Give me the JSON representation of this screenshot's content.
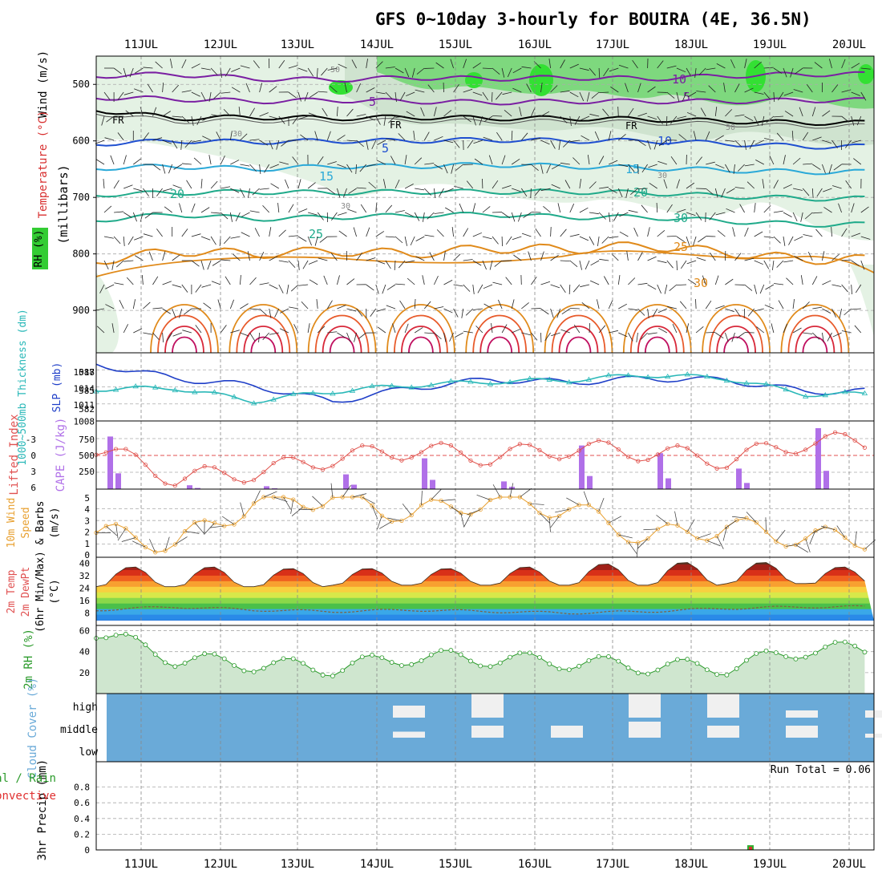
{
  "title": "GFS 0~10day 3-hourly for BOUIRA (4E, 36.5N)",
  "dates": [
    "11JUL",
    "12JUL",
    "13JUL",
    "14JUL",
    "15JUL",
    "16JUL",
    "17JUL",
    "18JUL",
    "19JUL",
    "20JUL"
  ],
  "colors": {
    "rh_green": "#4fd24f",
    "rh_light": "#e4f2e4",
    "temp_purple": "#7a1fa2",
    "temp_blue": "#1f4fd0",
    "temp_cyan": "#2aa9d8",
    "temp_teal": "#1faa8a",
    "temp_orange": "#e08a1a",
    "temp_red": "#d8283a",
    "slp": "#1f3fc8",
    "thickness": "#2ab8b8",
    "lifted": "#e0504a",
    "cape": "#b070e8",
    "wind10": "#e8a030",
    "rh2m": "#2a9a2a",
    "cloud_bg": "#6aaad8",
    "cloud_fill": "#f0f0f0"
  },
  "upper_panel": {
    "ylabel_wind": "Wind (m/s)",
    "ylabel_temp": "Temperature (°C)",
    "ylabel_rh": "RH (%)",
    "ylabel_mb": "(millibars)",
    "yticks": [
      "500",
      "600",
      "700",
      "800",
      "900"
    ],
    "freezing_label": "FR",
    "isotherm_labels": [
      "10",
      "5",
      "5",
      "5",
      "10",
      "15",
      "15",
      "20",
      "20",
      "25",
      "30"
    ],
    "rh_labels": [
      "50",
      "30",
      "50",
      "30",
      "30"
    ]
  },
  "chart_data": [
    {
      "type": "line",
      "panel": "pressure-level cross-section",
      "title": "GFS 0~10day 3-hourly for BOUIRA (4E, 36.5N)",
      "x": [
        "11JUL",
        "12JUL",
        "13JUL",
        "14JUL",
        "15JUL",
        "16JUL",
        "17JUL",
        "18JUL",
        "19JUL",
        "20JUL"
      ],
      "ylabel": "(millibars)",
      "ylim": [
        975,
        450
      ],
      "series": [
        {
          "name": "FR",
          "values": [
            545,
            560,
            558,
            560,
            558,
            560,
            560,
            562,
            565,
            568
          ]
        },
        {
          "name": "-5",
          "values": [
            523,
            526,
            530,
            528,
            530,
            532,
            530,
            530,
            530,
            528
          ]
        },
        {
          "name": "-10",
          "values": [
            485,
            482,
            490,
            492,
            488,
            490,
            488,
            490,
            485,
            482
          ]
        },
        {
          "name": "5",
          "values": [
            605,
            600,
            602,
            600,
            600,
            598,
            600,
            600,
            605,
            610
          ]
        },
        {
          "name": "10",
          "values": [
            648,
            645,
            650,
            645,
            645,
            642,
            645,
            648,
            652,
            655
          ]
        },
        {
          "name": "15",
          "values": [
            695,
            692,
            690,
            692,
            690,
            690,
            690,
            692,
            698,
            702
          ]
        },
        {
          "name": "20",
          "values": [
            740,
            730,
            738,
            735,
            732,
            730,
            735,
            735,
            742,
            748
          ]
        },
        {
          "name": "25",
          "values": [
            812,
            795,
            800,
            795,
            800,
            790,
            792,
            785,
            798,
            810
          ]
        }
      ]
    },
    {
      "type": "line",
      "panel": "SLP / thickness",
      "ylabel": "SLP (mb)",
      "ylabel2": "1000~500mb Thickness (dm)",
      "yticks_left": [
        "588",
        "585",
        "582"
      ],
      "yticks_right": [
        "1017",
        "1014",
        "1011",
        "1008"
      ],
      "ylim": [
        1008,
        1020
      ],
      "x": [
        "11JUL",
        "12JUL",
        "13JUL",
        "14JUL",
        "15JUL",
        "16JUL",
        "17JUL",
        "18JUL",
        "19JUL",
        "20JUL"
      ],
      "series": [
        {
          "name": "SLP",
          "values": [
            1018,
            1015.5,
            1014.2,
            1011.4,
            1013.8,
            1015.3,
            1014.8,
            1015.5,
            1015.2,
            1013.2
          ]
        },
        {
          "name": "Thickness",
          "values": [
            1013.6,
            1013.8,
            1011.5,
            1013.2,
            1014.3,
            1014.9,
            1015.2,
            1016.1,
            1015.5,
            1012.7
          ]
        }
      ]
    },
    {
      "type": "bar",
      "panel": "Lifted Index / CAPE",
      "ylabel": "Lifted Index",
      "ylabel2": "CAPE (J/kg)",
      "yticks_left": [
        "-3",
        "0",
        "3",
        "6"
      ],
      "yticks_right": [
        "750",
        "500",
        "250"
      ],
      "x": [
        "11JUL",
        "12JUL",
        "13JUL",
        "14JUL",
        "15JUL",
        "16JUL",
        "17JUL",
        "18JUL",
        "19JUL",
        "20JUL"
      ],
      "series": [
        {
          "name": "CAPE",
          "values": [
            820,
            60,
            45,
            230,
            480,
            120,
            680,
            560,
            320,
            950
          ]
        },
        {
          "name": "Lifted Index",
          "values": [
            -1.5,
            4.0,
            3.0,
            0.5,
            -1.0,
            0.2,
            -1.2,
            -0.6,
            0.8,
            -2.4
          ]
        }
      ]
    },
    {
      "type": "line",
      "panel": "10m Wind",
      "ylabel": "10m Wind Speed & Barbs (m/s)",
      "ylabel_parts": [
        "10m Wind",
        "Speed",
        "& Barbs",
        "(m/s)"
      ],
      "yticks": [
        "5",
        "4",
        "3",
        "2",
        "1",
        "0"
      ],
      "ylim": [
        0,
        5
      ],
      "x": [
        "11JUL",
        "12JUL",
        "13JUL",
        "14JUL",
        "15JUL",
        "16JUL",
        "17JUL",
        "18JUL",
        "19JUL",
        "20JUL"
      ],
      "series": [
        {
          "name": "Speed",
          "values": [
            2.0,
            1.0,
            4.5,
            5.0,
            3.5,
            4.8,
            4.0,
            1.5,
            2.5,
            1.5
          ]
        }
      ]
    },
    {
      "type": "area",
      "panel": "2m Temperature",
      "ylabel": "2m Temp 2m DewPt (6hr Min/Max) (°C)",
      "ylabel_parts": [
        "2m Temp",
        "2m DewPt",
        "(6hr Min/Max)",
        "(°C)"
      ],
      "yticks": [
        "40",
        "32",
        "24",
        "16",
        "8"
      ],
      "ylim": [
        0,
        44
      ],
      "x": [
        "11JUL",
        "12JUL",
        "13JUL",
        "14JUL",
        "15JUL",
        "16JUL",
        "17JUL",
        "18JUL",
        "19JUL",
        "20JUL"
      ],
      "series": [
        {
          "name": "2m Temp max",
          "values": [
            38,
            38,
            37,
            37,
            37,
            38,
            40,
            41,
            41,
            38
          ]
        },
        {
          "name": "2m Temp min",
          "values": [
            25,
            25,
            25,
            26,
            26,
            26,
            26,
            26,
            27,
            26
          ]
        },
        {
          "name": "2m DewPt",
          "values": [
            10,
            12,
            10,
            9,
            10,
            9,
            8,
            9,
            11,
            12
          ]
        }
      ]
    },
    {
      "type": "area",
      "panel": "2m RH",
      "ylabel": "2m RH (%)",
      "yticks": [
        "60",
        "40",
        "20"
      ],
      "ylim": [
        0,
        65
      ],
      "x": [
        "11JUL",
        "12JUL",
        "13JUL",
        "14JUL",
        "15JUL",
        "16JUL",
        "17JUL",
        "18JUL",
        "19JUL",
        "20JUL"
      ],
      "series": [
        {
          "name": "2m RH",
          "values": [
            60,
            33,
            28,
            24,
            35,
            33,
            30,
            26,
            25,
            42
          ]
        }
      ]
    },
    {
      "type": "bar",
      "panel": "Cloud Cover",
      "ylabel": "Cloud Cover (%)",
      "yticks": [
        "high",
        "middle",
        "low"
      ],
      "x": [
        "11JUL",
        "12JUL",
        "13JUL",
        "14JUL",
        "15JUL",
        "16JUL",
        "17JUL",
        "18JUL",
        "19JUL",
        "20JUL"
      ],
      "series": [
        {
          "name": "high",
          "values": [
            0,
            0,
            0,
            50,
            100,
            0,
            100,
            100,
            30,
            30
          ]
        },
        {
          "name": "middle",
          "values": [
            0,
            0,
            0,
            30,
            60,
            60,
            80,
            60,
            60,
            20
          ]
        },
        {
          "name": "low",
          "values": [
            0,
            0,
            0,
            0,
            0,
            0,
            0,
            0,
            0,
            0
          ]
        }
      ]
    },
    {
      "type": "bar",
      "panel": "3hr Precip",
      "ylabel": "3hr Precip (mm)",
      "ylabel2": "Total / Rain Convective",
      "ylabel2_parts": [
        "tal / Rain",
        "Convective"
      ],
      "yticks": [
        "0.8",
        "0.6",
        "0.4",
        "0.2",
        "0"
      ],
      "ylim": [
        0,
        1.0
      ],
      "annotation": "Run Total = 0.06",
      "x": [
        "11JUL",
        "12JUL",
        "13JUL",
        "14JUL",
        "15JUL",
        "16JUL",
        "17JUL",
        "18JUL",
        "19JUL",
        "20JUL"
      ],
      "series": [
        {
          "name": "Total",
          "values": [
            0,
            0,
            0,
            0,
            0,
            0,
            0,
            0.06,
            0,
            0
          ]
        }
      ]
    }
  ]
}
